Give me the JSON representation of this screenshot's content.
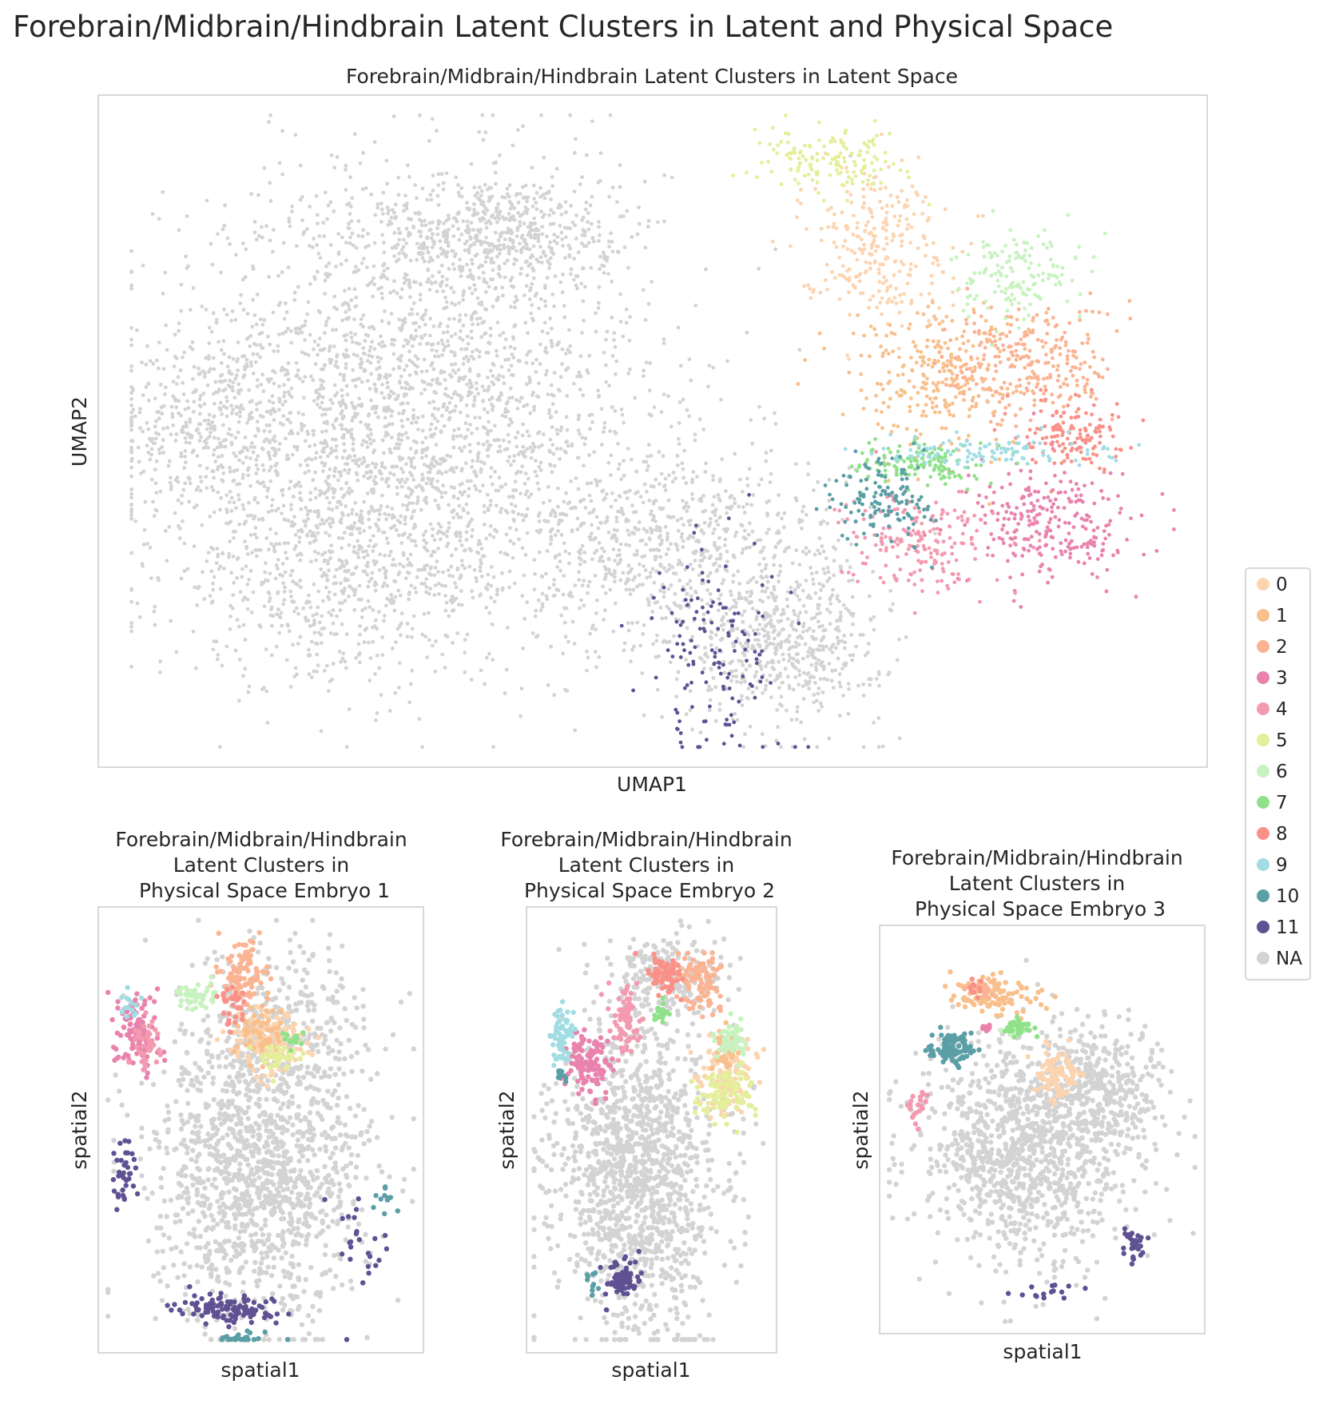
{
  "suptitle": "Forebrain/Midbrain/Hindbrain Latent Clusters in Latent and Physical Space",
  "chart_data": [
    {
      "type": "scatter",
      "title": "Forebrain/Midbrain/Hindbrain Latent Clusters in Latent Space",
      "xlabel": "UMAP1",
      "ylabel": "UMAP2",
      "grid": false,
      "ticks": false,
      "legend": "right",
      "clusters": [
        {
          "label": "NA",
          "blobs": [
            [
              0.28,
              0.55,
              0.2,
              0.3,
              2400
            ],
            [
              0.22,
              0.3,
              0.15,
              0.16,
              700
            ],
            [
              0.52,
              0.32,
              0.14,
              0.14,
              800
            ],
            [
              0.1,
              0.5,
              0.08,
              0.12,
              300
            ],
            [
              0.62,
              0.18,
              0.08,
              0.1,
              500
            ],
            [
              0.36,
              0.8,
              0.1,
              0.08,
              500
            ]
          ]
        },
        {
          "label": "0",
          "blobs": [
            [
              0.7,
              0.78,
              0.06,
              0.1,
              260
            ]
          ]
        },
        {
          "label": "1",
          "blobs": [
            [
              0.76,
              0.58,
              0.08,
              0.1,
              280
            ]
          ]
        },
        {
          "label": "2",
          "blobs": [
            [
              0.84,
              0.6,
              0.07,
              0.08,
              260
            ]
          ]
        },
        {
          "label": "3",
          "blobs": [
            [
              0.86,
              0.36,
              0.07,
              0.08,
              260
            ]
          ]
        },
        {
          "label": "4",
          "blobs": [
            [
              0.74,
              0.34,
              0.06,
              0.07,
              200
            ]
          ]
        },
        {
          "label": "5",
          "blobs": [
            [
              0.66,
              0.9,
              0.06,
              0.04,
              150
            ]
          ]
        },
        {
          "label": "6",
          "blobs": [
            [
              0.83,
              0.73,
              0.05,
              0.06,
              150
            ]
          ]
        },
        {
          "label": "7",
          "blobs": [
            [
              0.74,
              0.45,
              0.05,
              0.03,
              140
            ]
          ]
        },
        {
          "label": "8",
          "blobs": [
            [
              0.88,
              0.5,
              0.04,
              0.05,
              140
            ]
          ]
        },
        {
          "label": "9",
          "blobs": [
            [
              0.8,
              0.47,
              0.1,
              0.02,
              110
            ]
          ]
        },
        {
          "label": "10",
          "blobs": [
            [
              0.71,
              0.4,
              0.04,
              0.06,
              130
            ]
          ]
        },
        {
          "label": "11",
          "blobs": [
            [
              0.56,
              0.18,
              0.06,
              0.15,
              140
            ]
          ]
        }
      ]
    },
    {
      "type": "scatter",
      "title": "Forebrain/Midbrain/Hindbrain\nLatent Clusters in\nPhysical Space Embryo 1",
      "xlabel": "spatial1",
      "ylabel": "spatial2",
      "grid": false,
      "ticks": false,
      "clusters": [
        {
          "label": "NA",
          "blobs": [
            [
              0.5,
              0.4,
              0.3,
              0.3,
              1300
            ],
            [
              0.55,
              0.75,
              0.25,
              0.15,
              300
            ]
          ]
        },
        {
          "label": "0",
          "blobs": [
            [
              0.52,
              0.7,
              0.1,
              0.06,
              160
            ]
          ]
        },
        {
          "label": "1",
          "blobs": [
            [
              0.5,
              0.72,
              0.06,
              0.06,
              60
            ]
          ]
        },
        {
          "label": "2",
          "blobs": [
            [
              0.45,
              0.85,
              0.06,
              0.07,
              110
            ]
          ]
        },
        {
          "label": "3",
          "blobs": [
            [
              0.12,
              0.72,
              0.06,
              0.08,
              110
            ]
          ]
        },
        {
          "label": "4",
          "blobs": [
            [
              0.15,
              0.7,
              0.04,
              0.05,
              40
            ]
          ]
        },
        {
          "label": "5",
          "blobs": [
            [
              0.55,
              0.66,
              0.05,
              0.03,
              40
            ]
          ]
        },
        {
          "label": "6",
          "blobs": [
            [
              0.3,
              0.8,
              0.06,
              0.03,
              45
            ]
          ]
        },
        {
          "label": "7",
          "blobs": [
            [
              0.6,
              0.7,
              0.03,
              0.02,
              15
            ]
          ]
        },
        {
          "label": "8",
          "blobs": [
            [
              0.42,
              0.78,
              0.04,
              0.04,
              30
            ]
          ]
        },
        {
          "label": "9",
          "blobs": [
            [
              0.1,
              0.78,
              0.03,
              0.03,
              15
            ]
          ]
        },
        {
          "label": "10",
          "blobs": [
            [
              0.45,
              0.03,
              0.08,
              0.015,
              30
            ],
            [
              0.88,
              0.35,
              0.03,
              0.03,
              12
            ]
          ]
        },
        {
          "label": "11",
          "blobs": [
            [
              0.4,
              0.1,
              0.14,
              0.03,
              110
            ],
            [
              0.08,
              0.4,
              0.03,
              0.06,
              35
            ],
            [
              0.8,
              0.25,
              0.06,
              0.12,
              25
            ]
          ]
        }
      ]
    },
    {
      "type": "scatter",
      "title": "Forebrain/Midbrain/Hindbrain\nLatent Clusters in\nPhysical Space Embryo 2",
      "xlabel": "spatial1",
      "ylabel": "spatial2",
      "grid": false,
      "ticks": false,
      "clusters": [
        {
          "label": "NA",
          "blobs": [
            [
              0.45,
              0.4,
              0.3,
              0.32,
              1300
            ],
            [
              0.55,
              0.85,
              0.2,
              0.08,
              200
            ]
          ]
        },
        {
          "label": "0",
          "blobs": [
            [
              0.8,
              0.62,
              0.1,
              0.08,
              120
            ]
          ]
        },
        {
          "label": "1",
          "blobs": [
            [
              0.8,
              0.68,
              0.05,
              0.04,
              40
            ]
          ]
        },
        {
          "label": "2",
          "blobs": [
            [
              0.7,
              0.84,
              0.08,
              0.06,
              100
            ]
          ]
        },
        {
          "label": "3",
          "blobs": [
            [
              0.25,
              0.65,
              0.08,
              0.07,
              120
            ]
          ]
        },
        {
          "label": "4",
          "blobs": [
            [
              0.4,
              0.75,
              0.05,
              0.07,
              80
            ]
          ]
        },
        {
          "label": "5",
          "blobs": [
            [
              0.8,
              0.58,
              0.1,
              0.05,
              100
            ]
          ]
        },
        {
          "label": "6",
          "blobs": [
            [
              0.82,
              0.7,
              0.06,
              0.04,
              60
            ]
          ]
        },
        {
          "label": "7",
          "blobs": [
            [
              0.53,
              0.76,
              0.04,
              0.02,
              20
            ]
          ]
        },
        {
          "label": "8",
          "blobs": [
            [
              0.55,
              0.85,
              0.06,
              0.04,
              80
            ]
          ]
        },
        {
          "label": "9",
          "blobs": [
            [
              0.14,
              0.7,
              0.04,
              0.07,
              70
            ]
          ]
        },
        {
          "label": "10",
          "blobs": [
            [
              0.14,
              0.62,
              0.02,
              0.02,
              10
            ],
            [
              0.25,
              0.16,
              0.03,
              0.04,
              10
            ]
          ]
        },
        {
          "label": "11",
          "blobs": [
            [
              0.38,
              0.16,
              0.06,
              0.04,
              80
            ]
          ]
        }
      ]
    },
    {
      "type": "scatter",
      "title": "Forebrain/Midbrain/Hindbrain\nLatent Clusters in\nPhysical Space Embryo 3",
      "xlabel": "spatial1",
      "ylabel": "spatial2",
      "grid": false,
      "ticks": false,
      "clusters": [
        {
          "label": "NA",
          "blobs": [
            [
              0.45,
              0.45,
              0.3,
              0.25,
              1100
            ],
            [
              0.7,
              0.6,
              0.18,
              0.15,
              300
            ]
          ]
        },
        {
          "label": "0",
          "blobs": [
            [
              0.55,
              0.64,
              0.06,
              0.05,
              100
            ]
          ]
        },
        {
          "label": "1",
          "blobs": [
            [
              0.35,
              0.83,
              0.15,
              0.04,
              110
            ]
          ]
        },
        {
          "label": "2",
          "blobs": [
            [
              0.32,
              0.84,
              0.03,
              0.02,
              15
            ]
          ]
        },
        {
          "label": "3",
          "blobs": [
            [
              0.33,
              0.75,
              0.02,
              0.01,
              10
            ]
          ]
        },
        {
          "label": "4",
          "blobs": [
            [
              0.12,
              0.55,
              0.03,
              0.04,
              20
            ]
          ]
        },
        {
          "label": "6",
          "blobs": [
            [
              0.42,
              0.74,
              0.03,
              0.015,
              12
            ]
          ]
        },
        {
          "label": "7",
          "blobs": [
            [
              0.43,
              0.75,
              0.04,
              0.015,
              30
            ]
          ]
        },
        {
          "label": "8",
          "blobs": [
            [
              0.3,
              0.85,
              0.02,
              0.02,
              10
            ]
          ]
        },
        {
          "label": "10",
          "blobs": [
            [
              0.22,
              0.7,
              0.06,
              0.03,
              100
            ]
          ]
        },
        {
          "label": "11",
          "blobs": [
            [
              0.78,
              0.22,
              0.03,
              0.04,
              30
            ],
            [
              0.5,
              0.1,
              0.12,
              0.02,
              15
            ]
          ]
        }
      ]
    }
  ],
  "legend": {
    "entries": [
      {
        "label": "0",
        "color": "#fcd4b0"
      },
      {
        "label": "1",
        "color": "#f8c08c"
      },
      {
        "label": "2",
        "color": "#fbb493"
      },
      {
        "label": "3",
        "color": "#e983ad"
      },
      {
        "label": "4",
        "color": "#f39ab0"
      },
      {
        "label": "5",
        "color": "#e5ee9b"
      },
      {
        "label": "6",
        "color": "#c8f2c0"
      },
      {
        "label": "7",
        "color": "#8fe18a"
      },
      {
        "label": "8",
        "color": "#f99189"
      },
      {
        "label": "9",
        "color": "#a2dde4"
      },
      {
        "label": "10",
        "color": "#5a9fa5"
      },
      {
        "label": "11",
        "color": "#5f5192"
      },
      {
        "label": "NA",
        "color": "#d3d3d3"
      }
    ]
  }
}
